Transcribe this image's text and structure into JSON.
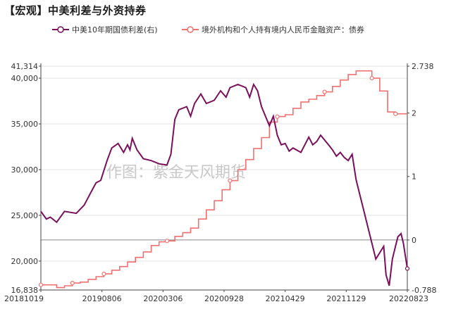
{
  "title": "【宏观】中美利差与外资持券",
  "watermark": "作图：紫金天风期货",
  "colors": {
    "spread": "#7a0f5c",
    "holdings": "#f07070",
    "grid": "#e3e3e3",
    "axis": "#444444"
  },
  "chart_data": {
    "type": "line",
    "dates": [
      "20181019",
      "20190806",
      "20200306",
      "20200928",
      "20210429",
      "20211129",
      "20220823"
    ],
    "left_axis": {
      "ticks": [
        16838,
        20000,
        25000,
        30000,
        35000,
        40000,
        41314
      ],
      "tick_labels": [
        "16,838",
        "20,000",
        "25,000",
        "30,000",
        "35,000",
        "40,000",
        "41,314"
      ],
      "ylim": [
        16838,
        41314
      ]
    },
    "right_axis": {
      "ticks": [
        -0.788,
        0,
        1,
        2,
        2.738
      ],
      "tick_labels": [
        "-0.788",
        "0",
        "1",
        "2",
        "2.738"
      ],
      "ylim": [
        -0.788,
        2.738
      ]
    },
    "series": [
      {
        "name": "中美10年期国债利差(右)",
        "axis": "right",
        "points": [
          [
            0,
            0.45
          ],
          [
            0.7,
            0.33
          ],
          [
            1.2,
            0.36
          ],
          [
            2.0,
            0.28
          ],
          [
            3.0,
            0.45
          ],
          [
            4.5,
            0.42
          ],
          [
            5.5,
            0.55
          ],
          [
            6.3,
            0.74
          ],
          [
            7.0,
            0.9
          ],
          [
            7.6,
            0.94
          ],
          [
            8.4,
            1.25
          ],
          [
            9.0,
            1.45
          ],
          [
            9.8,
            1.52
          ],
          [
            10.5,
            1.38
          ],
          [
            11.0,
            1.5
          ],
          [
            11.3,
            1.42
          ],
          [
            11.6,
            1.6
          ],
          [
            12.2,
            1.42
          ],
          [
            13.0,
            1.28
          ],
          [
            14.0,
            1.25
          ],
          [
            15.0,
            1.2
          ],
          [
            16.0,
            1.18
          ],
          [
            16.5,
            1.35
          ],
          [
            17.0,
            1.9
          ],
          [
            17.5,
            2.05
          ],
          [
            18.5,
            2.1
          ],
          [
            19.0,
            1.95
          ],
          [
            19.5,
            2.15
          ],
          [
            20.3,
            2.3
          ],
          [
            21.0,
            2.15
          ],
          [
            22.0,
            2.2
          ],
          [
            22.8,
            2.35
          ],
          [
            23.5,
            2.25
          ],
          [
            24.0,
            2.4
          ],
          [
            25.0,
            2.45
          ],
          [
            26.0,
            2.4
          ],
          [
            26.5,
            2.25
          ],
          [
            27.0,
            2.45
          ],
          [
            27.5,
            2.35
          ],
          [
            28.0,
            2.1
          ],
          [
            28.5,
            1.95
          ],
          [
            29.0,
            1.8
          ],
          [
            29.5,
            1.95
          ],
          [
            30.0,
            1.65
          ],
          [
            30.5,
            1.5
          ],
          [
            31.0,
            1.52
          ],
          [
            31.5,
            1.4
          ],
          [
            32.0,
            1.45
          ],
          [
            33.0,
            1.38
          ],
          [
            33.5,
            1.5
          ],
          [
            34.0,
            1.62
          ],
          [
            34.5,
            1.5
          ],
          [
            35.0,
            1.55
          ],
          [
            35.5,
            1.65
          ],
          [
            36.5,
            1.5
          ],
          [
            37.0,
            1.42
          ],
          [
            37.5,
            1.32
          ],
          [
            38.0,
            1.38
          ],
          [
            38.5,
            1.3
          ],
          [
            39.0,
            1.25
          ],
          [
            39.5,
            1.35
          ],
          [
            40.0,
            0.95
          ],
          [
            40.5,
            0.7
          ],
          [
            41.0,
            0.45
          ],
          [
            41.5,
            0.2
          ],
          [
            42.0,
            -0.05
          ],
          [
            42.5,
            -0.3
          ],
          [
            43.0,
            -0.2
          ],
          [
            43.5,
            -0.1
          ],
          [
            43.8,
            -0.55
          ],
          [
            44.2,
            -0.72
          ],
          [
            44.6,
            -0.3
          ],
          [
            45.0,
            -0.1
          ],
          [
            45.3,
            0.05
          ],
          [
            45.7,
            0.1
          ],
          [
            46.0,
            -0.05
          ],
          [
            46.5,
            -0.45
          ]
        ]
      },
      {
        "name": "境外机构和个人持有境内人民币金融资产：债券",
        "axis": "left",
        "points": [
          [
            0,
            17400
          ],
          [
            2,
            17400
          ],
          [
            2,
            17100
          ],
          [
            3,
            17100
          ],
          [
            3,
            17300
          ],
          [
            4,
            17300
          ],
          [
            4,
            17600
          ],
          [
            5,
            17600
          ],
          [
            5,
            17700
          ],
          [
            6,
            17700
          ],
          [
            6,
            18000
          ],
          [
            7,
            18000
          ],
          [
            7,
            18300
          ],
          [
            8,
            18300
          ],
          [
            8,
            18600
          ],
          [
            9,
            18600
          ],
          [
            9,
            19000
          ],
          [
            10,
            19000
          ],
          [
            10,
            19400
          ],
          [
            11,
            19400
          ],
          [
            11,
            19900
          ],
          [
            12,
            19900
          ],
          [
            12,
            20400
          ],
          [
            13,
            20400
          ],
          [
            13,
            21000
          ],
          [
            14,
            21000
          ],
          [
            14,
            21700
          ],
          [
            15,
            21700
          ],
          [
            15,
            22100
          ],
          [
            16,
            22100
          ],
          [
            16,
            22200
          ],
          [
            17,
            22200
          ],
          [
            17,
            22700
          ],
          [
            18,
            22700
          ],
          [
            18,
            23100
          ],
          [
            19,
            23100
          ],
          [
            19,
            23600
          ],
          [
            20,
            23600
          ],
          [
            20,
            24600
          ],
          [
            21,
            24600
          ],
          [
            21,
            25600
          ],
          [
            22,
            25600
          ],
          [
            22,
            26600
          ],
          [
            23,
            26600
          ],
          [
            23,
            27800
          ],
          [
            24,
            27800
          ],
          [
            24,
            28800
          ],
          [
            25,
            28800
          ],
          [
            25,
            30000
          ],
          [
            26,
            30000
          ],
          [
            26,
            31100
          ],
          [
            27,
            31100
          ],
          [
            27,
            32300
          ],
          [
            28,
            32300
          ],
          [
            28,
            33500
          ],
          [
            29,
            33500
          ],
          [
            29,
            35200
          ],
          [
            30,
            35200
          ],
          [
            30,
            35800
          ],
          [
            31,
            35800
          ],
          [
            31,
            36000
          ],
          [
            32,
            36000
          ],
          [
            32,
            36700
          ],
          [
            33,
            36700
          ],
          [
            33,
            37400
          ],
          [
            34,
            37400
          ],
          [
            34,
            37700
          ],
          [
            35,
            37700
          ],
          [
            35,
            38100
          ],
          [
            36,
            38100
          ],
          [
            36,
            38500
          ],
          [
            37,
            38500
          ],
          [
            37,
            39100
          ],
          [
            38,
            39100
          ],
          [
            38,
            39800
          ],
          [
            39,
            39800
          ],
          [
            39,
            40400
          ],
          [
            40,
            40400
          ],
          [
            40,
            40800
          ],
          [
            42,
            40800
          ],
          [
            42,
            40000
          ],
          [
            43,
            40000
          ],
          [
            43,
            38600
          ],
          [
            44,
            38600
          ],
          [
            44,
            36300
          ],
          [
            45,
            36300
          ],
          [
            45,
            36100
          ],
          [
            46.5,
            36100
          ]
        ]
      }
    ]
  }
}
